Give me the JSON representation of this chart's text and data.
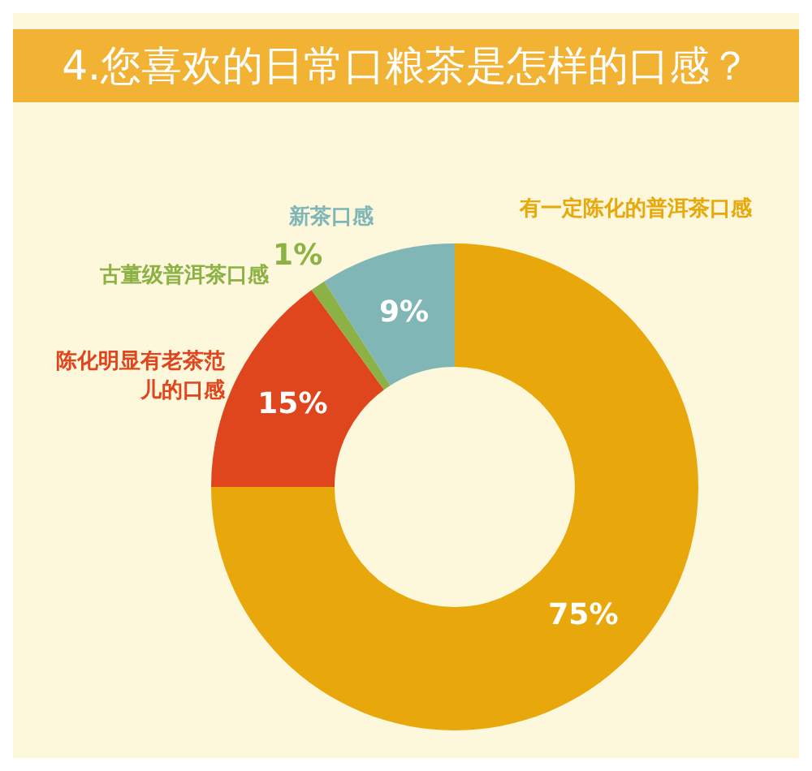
{
  "chart_data": {
    "type": "donut",
    "title": "4.您喜欢的日常口粮茶是怎样的口感？",
    "categories": [
      "有一定陈化的普洱茶口感",
      "陈化明显有老茶范儿的口感",
      "古董级普洱茶口感",
      "新茶口感"
    ],
    "values": [
      75,
      15,
      1,
      9
    ],
    "colors": [
      "#e8a80c",
      "#e0461e",
      "#8cb144",
      "#80b6b6"
    ],
    "value_labels": [
      "75%",
      "15%",
      "1%",
      "9%"
    ],
    "legend": false
  }
}
